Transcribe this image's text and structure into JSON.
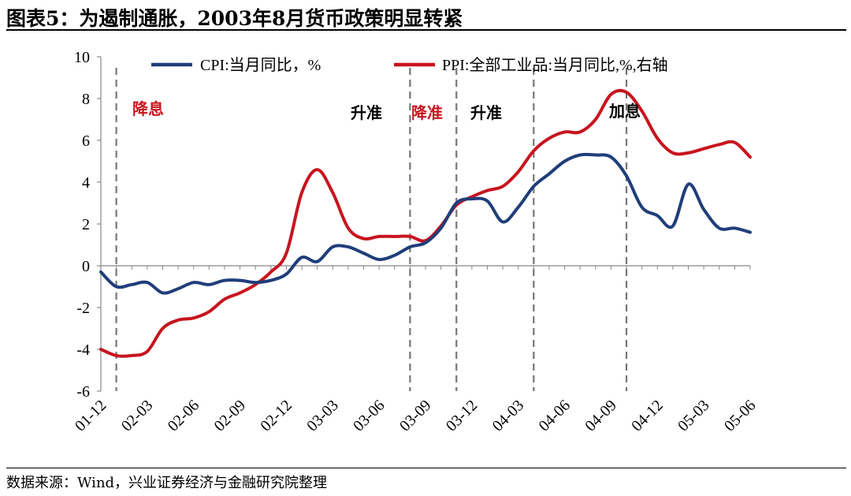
{
  "header": {
    "title": "图表5：为遏制通胀，2003年8月货币政策明显转紧"
  },
  "footer": {
    "source": "数据来源：Wind，兴业证券经济与金融研究院整理"
  },
  "chart_data": {
    "type": "line",
    "ylim": [
      -6,
      10
    ],
    "yticks": [
      "10",
      "8",
      "6",
      "4",
      "2",
      "0",
      "-2",
      "-4",
      "-6"
    ],
    "xticks": [
      "01-12",
      "02-03",
      "02-06",
      "02-09",
      "02-12",
      "03-03",
      "03-06",
      "03-09",
      "03-12",
      "04-03",
      "04-06",
      "04-09",
      "04-12",
      "05-03",
      "05-06"
    ],
    "legend_position": "top",
    "series": [
      {
        "name": "CPI:当月同比，%",
        "color": "#1f3e7a",
        "values": [
          -0.3,
          -1.0,
          -0.9,
          -0.8,
          -1.3,
          -1.1,
          -0.8,
          -0.9,
          -0.7,
          -0.7,
          -0.8,
          -0.7,
          -0.4,
          0.4,
          0.2,
          0.9,
          0.9,
          0.6,
          0.3,
          0.5,
          0.9,
          1.1,
          1.8,
          3.0,
          3.2,
          3.1,
          2.1,
          2.8,
          3.8,
          4.4,
          5.0,
          5.3,
          5.3,
          5.2,
          4.3,
          2.8,
          2.4,
          1.9,
          3.9,
          2.7,
          1.8,
          1.8,
          1.6
        ]
      },
      {
        "name": "PPI:全部工业品:当月同比,%,右轴",
        "color": "#c8141e",
        "values": [
          -4.0,
          -4.3,
          -4.3,
          -4.1,
          -3.0,
          -2.6,
          -2.5,
          -2.2,
          -1.6,
          -1.3,
          -0.9,
          -0.3,
          0.6,
          3.5,
          4.6,
          3.5,
          1.8,
          1.3,
          1.4,
          1.4,
          1.4,
          1.2,
          1.9,
          2.9,
          3.3,
          3.6,
          3.8,
          4.5,
          5.5,
          6.1,
          6.4,
          6.4,
          7.0,
          8.2,
          8.3,
          7.4,
          6.1,
          5.4,
          5.4,
          5.6,
          5.8,
          5.9,
          5.2
        ]
      }
    ],
    "events": [
      {
        "label": "降息",
        "index": 1,
        "color": "#c8141e"
      },
      {
        "label": "升准",
        "index": 20,
        "color": "#000000"
      },
      {
        "label": "降准",
        "index": 20,
        "color": "#c8141e"
      },
      {
        "label": "升准",
        "index": 23,
        "color": "#000000"
      },
      {
        "label": "加息",
        "index": 34,
        "color": "#000000"
      }
    ],
    "event_lines": [
      1,
      20,
      23,
      28,
      34
    ]
  }
}
